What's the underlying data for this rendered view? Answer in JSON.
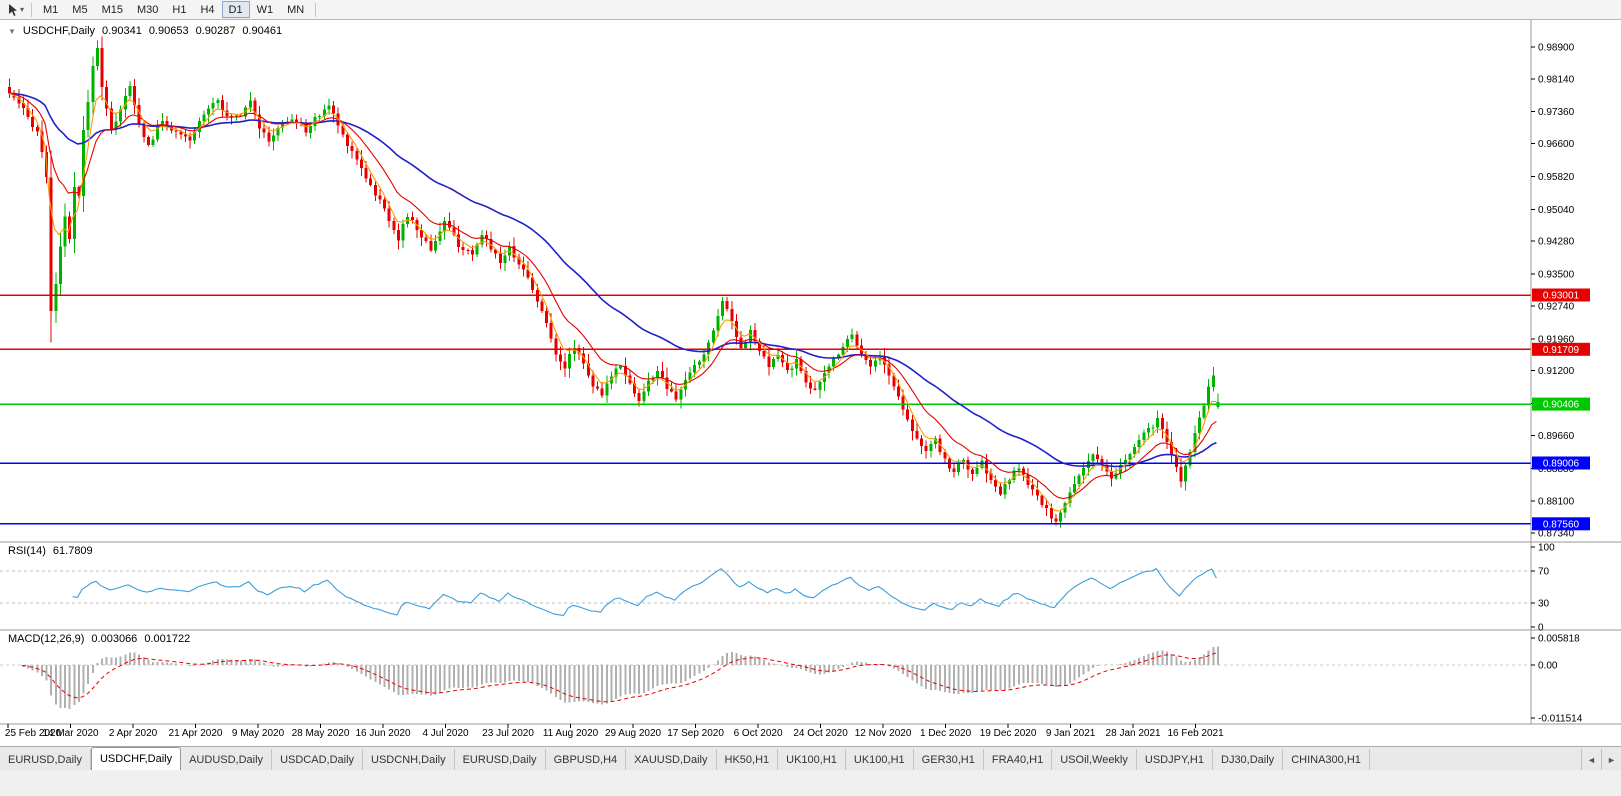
{
  "toolbar": {
    "timeframes": [
      "M1",
      "M5",
      "M15",
      "M30",
      "H1",
      "H4",
      "D1",
      "W1",
      "MN"
    ],
    "active_timeframe": "D1"
  },
  "chart_header": {
    "symbol_period": "USDCHF,Daily",
    "open": "0.90341",
    "high": "0.90653",
    "low": "0.90287",
    "close": "0.90461"
  },
  "rsi_header": {
    "name": "RSI(14)",
    "value": "61.7809"
  },
  "macd_header": {
    "name": "MACD(12,26,9)",
    "main": "0.003066",
    "signal": "0.001722"
  },
  "chart_data": {
    "type": "candlestick",
    "symbol": "USDCHF",
    "timeframe": "Daily",
    "current_ohlc": {
      "open": 0.90341,
      "high": 0.90653,
      "low": 0.90287,
      "close": 0.90461
    },
    "n_candles": 262,
    "wick_extra": 0.0018,
    "candle_up_color": "#00b200",
    "candle_down_color": "#e80000",
    "x_labels": [
      "25 Feb 2020",
      "14 Mar 2020",
      "2 Apr 2020",
      "21 Apr 2020",
      "9 May 2020",
      "28 May 2020",
      "16 Jun 2020",
      "4 Jul 2020",
      "23 Jul 2020",
      "11 Aug 2020",
      "29 Aug 2020",
      "17 Sep 2020",
      "6 Oct 2020",
      "24 Oct 2020",
      "12 Nov 2020",
      "1 Dec 2020",
      "19 Dec 2020",
      "9 Jan 2021",
      "28 Jan 2021",
      "16 Feb 2021"
    ],
    "y_axis": {
      "ticks": [
        "0.98900",
        "0.98140",
        "0.97360",
        "0.96600",
        "0.95820",
        "0.95040",
        "0.94280",
        "0.93500",
        "0.92740",
        "0.91960",
        "0.91200",
        "0.90420",
        "0.89660",
        "0.88880",
        "0.88100",
        "0.87340"
      ],
      "top_value": 0.989,
      "bottom_value": 0.8734
    },
    "horizontal_lines": [
      {
        "value": 0.93001,
        "label": "0.93001",
        "color": "#e60000"
      },
      {
        "value": 0.91709,
        "label": "0.91709",
        "color": "#e60000"
      },
      {
        "value": 0.90406,
        "label": "0.90406",
        "color": "#00c800"
      },
      {
        "value": 0.89006,
        "label": "0.89006",
        "color": "#0000ff"
      },
      {
        "value": 0.8756,
        "label": "0.87560",
        "color": "#0000ff"
      }
    ],
    "moving_averages": [
      {
        "period": 40,
        "color": "#2020cc"
      },
      {
        "period": 13,
        "color": "#e60000"
      },
      {
        "period": 5,
        "color": "#ff9900"
      }
    ],
    "price_anchors": [
      [
        0,
        0.978
      ],
      [
        3,
        0.9738
      ],
      [
        6,
        0.969
      ],
      [
        8,
        0.9585
      ],
      [
        9,
        0.9255
      ],
      [
        10,
        0.933
      ],
      [
        11,
        0.942
      ],
      [
        12,
        0.948
      ],
      [
        13,
        0.943
      ],
      [
        14,
        0.9555
      ],
      [
        15,
        0.953
      ],
      [
        16,
        0.969
      ],
      [
        17,
        0.9755
      ],
      [
        18,
        0.985
      ],
      [
        19,
        0.9885
      ],
      [
        20,
        0.98
      ],
      [
        21,
        0.9745
      ],
      [
        22,
        0.969
      ],
      [
        24,
        0.9745
      ],
      [
        26,
        0.9795
      ],
      [
        28,
        0.9705
      ],
      [
        30,
        0.9655
      ],
      [
        33,
        0.9715
      ],
      [
        36,
        0.9685
      ],
      [
        39,
        0.9665
      ],
      [
        42,
        0.9735
      ],
      [
        45,
        0.977
      ],
      [
        47,
        0.972
      ],
      [
        50,
        0.973
      ],
      [
        52,
        0.9768
      ],
      [
        54,
        0.97
      ],
      [
        56,
        0.9662
      ],
      [
        58,
        0.97
      ],
      [
        61,
        0.972
      ],
      [
        64,
        0.9692
      ],
      [
        67,
        0.973
      ],
      [
        69,
        0.9752
      ],
      [
        72,
        0.968
      ],
      [
        75,
        0.9625
      ],
      [
        78,
        0.956
      ],
      [
        81,
        0.9505
      ],
      [
        84,
        0.9435
      ],
      [
        86,
        0.949
      ],
      [
        89,
        0.944
      ],
      [
        91,
        0.941
      ],
      [
        94,
        0.9475
      ],
      [
        97,
        0.942
      ],
      [
        100,
        0.939
      ],
      [
        102,
        0.9445
      ],
      [
        104,
        0.9415
      ],
      [
        106,
        0.938
      ],
      [
        108,
        0.9412
      ],
      [
        110,
        0.9378
      ],
      [
        112,
        0.934
      ],
      [
        114,
        0.929
      ],
      [
        116,
        0.923
      ],
      [
        118,
        0.9165
      ],
      [
        120,
        0.9128
      ],
      [
        122,
        0.918
      ],
      [
        124,
        0.914
      ],
      [
        126,
        0.9085
      ],
      [
        128,
        0.9058
      ],
      [
        130,
        0.9112
      ],
      [
        132,
        0.9138
      ],
      [
        134,
        0.909
      ],
      [
        136,
        0.9048
      ],
      [
        138,
        0.9092
      ],
      [
        140,
        0.9122
      ],
      [
        142,
        0.9078
      ],
      [
        144,
        0.905
      ],
      [
        146,
        0.91
      ],
      [
        148,
        0.9128
      ],
      [
        150,
        0.916
      ],
      [
        152,
        0.9212
      ],
      [
        154,
        0.9292
      ],
      [
        156,
        0.9238
      ],
      [
        158,
        0.9175
      ],
      [
        160,
        0.9212
      ],
      [
        162,
        0.9168
      ],
      [
        164,
        0.9128
      ],
      [
        166,
        0.9158
      ],
      [
        168,
        0.912
      ],
      [
        170,
        0.9142
      ],
      [
        172,
        0.9098
      ],
      [
        174,
        0.9068
      ],
      [
        176,
        0.9112
      ],
      [
        178,
        0.9148
      ],
      [
        180,
        0.918
      ],
      [
        182,
        0.9208
      ],
      [
        184,
        0.9165
      ],
      [
        186,
        0.9128
      ],
      [
        188,
        0.9158
      ],
      [
        190,
        0.9108
      ],
      [
        192,
        0.9058
      ],
      [
        194,
        0.9008
      ],
      [
        196,
        0.8958
      ],
      [
        198,
        0.8928
      ],
      [
        200,
        0.8952
      ],
      [
        202,
        0.8908
      ],
      [
        204,
        0.8878
      ],
      [
        206,
        0.8912
      ],
      [
        208,
        0.8868
      ],
      [
        210,
        0.8902
      ],
      [
        212,
        0.8858
      ],
      [
        214,
        0.8828
      ],
      [
        216,
        0.8862
      ],
      [
        218,
        0.8892
      ],
      [
        220,
        0.8848
      ],
      [
        222,
        0.8818
      ],
      [
        224,
        0.8788
      ],
      [
        226,
        0.876
      ],
      [
        228,
        0.8802
      ],
      [
        230,
        0.8852
      ],
      [
        232,
        0.8892
      ],
      [
        234,
        0.8922
      ],
      [
        236,
        0.8888
      ],
      [
        238,
        0.8862
      ],
      [
        240,
        0.8892
      ],
      [
        242,
        0.8922
      ],
      [
        244,
        0.8952
      ],
      [
        246,
        0.8982
      ],
      [
        248,
        0.9002
      ],
      [
        250,
        0.8948
      ],
      [
        252,
        0.8888
      ],
      [
        253,
        0.8858
      ],
      [
        254,
        0.8892
      ],
      [
        255,
        0.8932
      ],
      [
        256,
        0.8972
      ],
      [
        257,
        0.9012
      ],
      [
        258,
        0.9042
      ],
      [
        259,
        0.9082
      ],
      [
        260,
        0.9102
      ],
      [
        261,
        0.9046
      ]
    ],
    "rsi": {
      "period": 14,
      "current": 61.7809,
      "levels": [
        70,
        30
      ],
      "axis_ticks": [
        "100",
        "70",
        "30",
        "0"
      ],
      "color": "#3a9ede"
    },
    "macd": {
      "fast": 12,
      "slow": 26,
      "signal": 9,
      "current_main": 0.003066,
      "current_signal": 0.001722,
      "axis_ticks": [
        "0.005818",
        "0.00",
        "-0.011514"
      ],
      "axis_max": 0.005818,
      "axis_min": -0.011514,
      "hist_color": "#b0b0b0",
      "signal_color": "#e60000"
    }
  },
  "tabs": {
    "scroll_left_icon": "◄",
    "scroll_right_icon": "►",
    "items": [
      {
        "label": "EURUSD,Daily",
        "active": false
      },
      {
        "label": "USDCHF,Daily",
        "active": true
      },
      {
        "label": "AUDUSD,Daily",
        "active": false
      },
      {
        "label": "USDCAD,Daily",
        "active": false
      },
      {
        "label": "USDCNH,Daily",
        "active": false
      },
      {
        "label": "EURUSD,Daily",
        "active": false
      },
      {
        "label": "GBPUSD,H4",
        "active": false
      },
      {
        "label": "XAUUSD,Daily",
        "active": false
      },
      {
        "label": "HK50,H1",
        "active": false
      },
      {
        "label": "UK100,H1",
        "active": false
      },
      {
        "label": "UK100,H1",
        "active": false
      },
      {
        "label": "GER30,H1",
        "active": false
      },
      {
        "label": "FRA40,H1",
        "active": false
      },
      {
        "label": "USOil,Weekly",
        "active": false
      },
      {
        "label": "USDJPY,H1",
        "active": false
      },
      {
        "label": "DJ30,Daily",
        "active": false
      },
      {
        "label": "CHINA300,H1",
        "active": false
      }
    ]
  }
}
